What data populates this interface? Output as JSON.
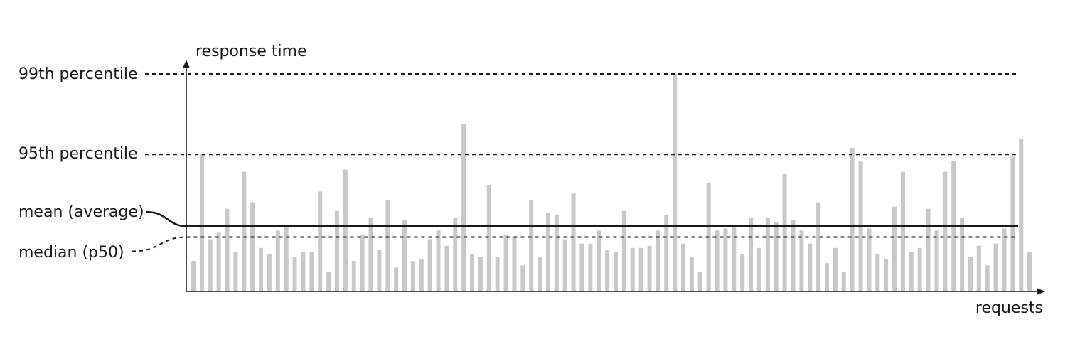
{
  "chart_data": {
    "type": "bar",
    "ylabel": "response time",
    "xlabel": "requests",
    "reference_lines": {
      "p99": {
        "label": "99th percentile",
        "value": 100,
        "style": "dashed"
      },
      "p95": {
        "label": "95th percentile",
        "value": 63,
        "style": "dashed"
      },
      "mean": {
        "label": "mean (average)",
        "value": 30,
        "style": "solid"
      },
      "median": {
        "label": "median (p50)",
        "value": 25,
        "style": "dashed"
      }
    },
    "ylim": [
      0,
      100
    ],
    "grid": false,
    "bar_color": "#c8c8c8",
    "values": [
      14,
      63,
      24,
      27,
      38,
      18,
      55,
      41,
      20,
      17,
      28,
      30,
      16,
      18,
      18,
      46,
      9,
      37,
      56,
      14,
      26,
      34,
      19,
      42,
      11,
      33,
      14,
      15,
      24,
      28,
      21,
      34,
      77,
      17,
      16,
      49,
      16,
      26,
      25,
      12,
      42,
      16,
      36,
      35,
      24,
      45,
      22,
      22,
      28,
      19,
      18,
      37,
      20,
      20,
      21,
      28,
      35,
      100,
      22,
      16,
      9,
      50,
      28,
      29,
      30,
      17,
      34,
      20,
      34,
      32,
      54,
      33,
      28,
      22,
      41,
      13,
      20,
      9,
      66,
      60,
      29,
      17,
      15,
      39,
      55,
      18,
      20,
      38,
      28,
      55,
      60,
      34,
      16,
      21,
      12,
      22,
      29,
      62,
      70,
      18
    ]
  }
}
